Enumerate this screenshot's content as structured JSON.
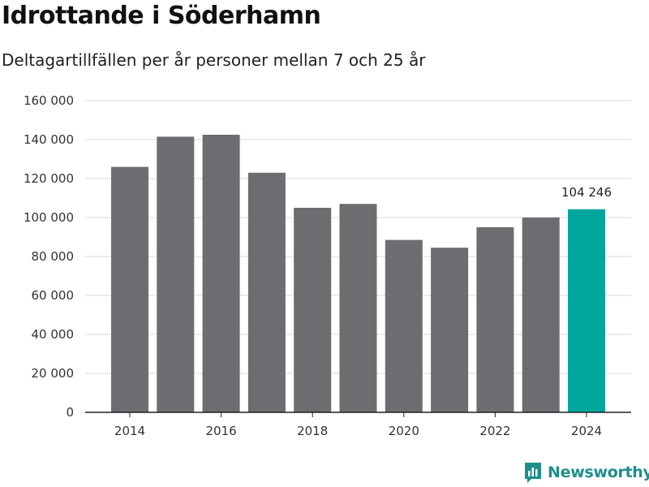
{
  "title": "Idrottande i Söderhamn",
  "subtitle": "Deltagartillfällen per år personer mellan 7 och 25 år",
  "brand": {
    "name": "Newsworthy",
    "color": "#1f8f8c"
  },
  "colors": {
    "bar": "#6d6c71",
    "highlight": "#00a79d",
    "grid": "#d9d9d9",
    "axis": "#222222"
  },
  "chart_data": {
    "type": "bar",
    "title": "Idrottande i Söderhamn",
    "xlabel": "",
    "ylabel": "",
    "categories": [
      "2014",
      "2015",
      "2016",
      "2017",
      "2018",
      "2019",
      "2020",
      "2021",
      "2022",
      "2023",
      "2024"
    ],
    "values": [
      126000,
      141500,
      142500,
      123000,
      105000,
      107000,
      88500,
      84500,
      95000,
      100000,
      104246
    ],
    "x_tick_labels": [
      "2014",
      "2016",
      "2018",
      "2020",
      "2022",
      "2024"
    ],
    "y_tick_labels": [
      "0",
      "20 000",
      "40 000",
      "60 000",
      "80 000",
      "100 000",
      "120 000",
      "140 000",
      "160 000"
    ],
    "ylim": [
      0,
      160000
    ],
    "highlight_index": 10,
    "data_labels": [
      {
        "index": 10,
        "text": "104 246"
      }
    ],
    "grid": true
  }
}
